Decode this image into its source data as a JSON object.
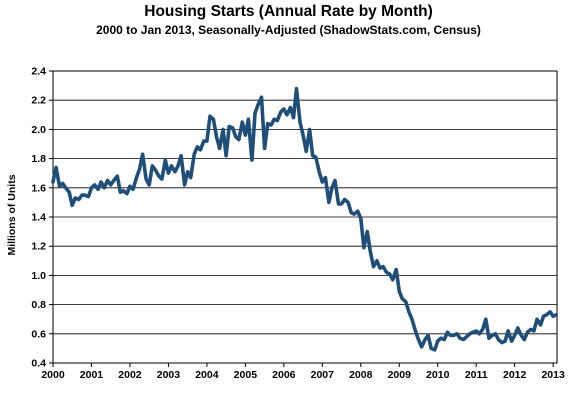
{
  "chart_data": {
    "type": "line",
    "title": "Housing Starts (Annual Rate by Month)",
    "subtitle": "2000 to Jan 2013, Seasonally-Adjusted (ShadowStats.com, Census)",
    "xlabel": "",
    "ylabel": "Millions of Units",
    "xlim": [
      2000,
      2013.08
    ],
    "ylim": [
      0.4,
      2.4
    ],
    "y_ticks": [
      0.4,
      0.6,
      0.8,
      1.0,
      1.2,
      1.4,
      1.6,
      1.8,
      2.0,
      2.2,
      2.4
    ],
    "y_tick_labels": [
      "0.4",
      "0.6",
      "0.8",
      "1.0",
      "1.2",
      "1.4",
      "1.6",
      "1.8",
      "2.0",
      "2.2",
      "2.4"
    ],
    "x_ticks": [
      2000,
      2001,
      2002,
      2003,
      2004,
      2005,
      2006,
      2007,
      2008,
      2009,
      2010,
      2011,
      2012,
      2013
    ],
    "x_tick_labels": [
      "2000",
      "2001",
      "2002",
      "2003",
      "2004",
      "2005",
      "2006",
      "2007",
      "2008",
      "2009",
      "2010",
      "2011",
      "2012",
      "2013"
    ],
    "grid": "horizontal",
    "line_color": "#1f4e79",
    "series": [
      {
        "points": [
          [
            2000.0,
            1.64
          ],
          [
            2000.08,
            1.74
          ],
          [
            2000.17,
            1.61
          ],
          [
            2000.25,
            1.63
          ],
          [
            2000.33,
            1.6
          ],
          [
            2000.42,
            1.57
          ],
          [
            2000.5,
            1.48
          ],
          [
            2000.58,
            1.53
          ],
          [
            2000.67,
            1.52
          ],
          [
            2000.75,
            1.55
          ],
          [
            2000.83,
            1.55
          ],
          [
            2000.92,
            1.54
          ],
          [
            2001.0,
            1.6
          ],
          [
            2001.08,
            1.62
          ],
          [
            2001.17,
            1.59
          ],
          [
            2001.25,
            1.64
          ],
          [
            2001.33,
            1.6
          ],
          [
            2001.42,
            1.65
          ],
          [
            2001.5,
            1.62
          ],
          [
            2001.58,
            1.65
          ],
          [
            2001.67,
            1.68
          ],
          [
            2001.75,
            1.57
          ],
          [
            2001.83,
            1.58
          ],
          [
            2001.92,
            1.56
          ],
          [
            2002.0,
            1.61
          ],
          [
            2002.08,
            1.59
          ],
          [
            2002.17,
            1.67
          ],
          [
            2002.25,
            1.73
          ],
          [
            2002.33,
            1.83
          ],
          [
            2002.42,
            1.66
          ],
          [
            2002.5,
            1.62
          ],
          [
            2002.58,
            1.75
          ],
          [
            2002.67,
            1.72
          ],
          [
            2002.75,
            1.68
          ],
          [
            2002.83,
            1.66
          ],
          [
            2002.92,
            1.79
          ],
          [
            2003.0,
            1.7
          ],
          [
            2003.08,
            1.75
          ],
          [
            2003.17,
            1.71
          ],
          [
            2003.25,
            1.75
          ],
          [
            2003.33,
            1.82
          ],
          [
            2003.42,
            1.62
          ],
          [
            2003.5,
            1.71
          ],
          [
            2003.58,
            1.67
          ],
          [
            2003.67,
            1.83
          ],
          [
            2003.75,
            1.88
          ],
          [
            2003.83,
            1.86
          ],
          [
            2003.92,
            1.92
          ],
          [
            2004.0,
            1.92
          ],
          [
            2004.08,
            2.09
          ],
          [
            2004.17,
            2.07
          ],
          [
            2004.25,
            1.95
          ],
          [
            2004.33,
            1.87
          ],
          [
            2004.42,
            2.0
          ],
          [
            2004.5,
            1.82
          ],
          [
            2004.58,
            2.02
          ],
          [
            2004.67,
            2.01
          ],
          [
            2004.75,
            1.95
          ],
          [
            2004.83,
            1.93
          ],
          [
            2004.92,
            2.05
          ],
          [
            2005.0,
            1.96
          ],
          [
            2005.08,
            2.07
          ],
          [
            2005.17,
            1.79
          ],
          [
            2005.25,
            2.11
          ],
          [
            2005.33,
            2.17
          ],
          [
            2005.42,
            2.22
          ],
          [
            2005.5,
            1.87
          ],
          [
            2005.58,
            2.04
          ],
          [
            2005.67,
            2.03
          ],
          [
            2005.75,
            2.07
          ],
          [
            2005.83,
            2.06
          ],
          [
            2005.92,
            2.12
          ],
          [
            2006.0,
            2.14
          ],
          [
            2006.08,
            2.1
          ],
          [
            2006.17,
            2.15
          ],
          [
            2006.25,
            2.08
          ],
          [
            2006.33,
            2.28
          ],
          [
            2006.42,
            2.05
          ],
          [
            2006.5,
            1.96
          ],
          [
            2006.58,
            1.85
          ],
          [
            2006.67,
            2.0
          ],
          [
            2006.75,
            1.82
          ],
          [
            2006.83,
            1.81
          ],
          [
            2006.92,
            1.71
          ],
          [
            2007.0,
            1.64
          ],
          [
            2007.08,
            1.67
          ],
          [
            2007.17,
            1.5
          ],
          [
            2007.25,
            1.6
          ],
          [
            2007.33,
            1.65
          ],
          [
            2007.42,
            1.49
          ],
          [
            2007.5,
            1.49
          ],
          [
            2007.58,
            1.52
          ],
          [
            2007.67,
            1.5
          ],
          [
            2007.75,
            1.43
          ],
          [
            2007.83,
            1.42
          ],
          [
            2007.92,
            1.44
          ],
          [
            2008.0,
            1.39
          ],
          [
            2008.08,
            1.19
          ],
          [
            2008.17,
            1.3
          ],
          [
            2008.25,
            1.16
          ],
          [
            2008.33,
            1.06
          ],
          [
            2008.42,
            1.1
          ],
          [
            2008.5,
            1.05
          ],
          [
            2008.58,
            1.06
          ],
          [
            2008.67,
            1.02
          ],
          [
            2008.75,
            1.01
          ],
          [
            2008.83,
            0.97
          ],
          [
            2008.92,
            1.04
          ],
          [
            2009.0,
            0.89
          ],
          [
            2009.08,
            0.84
          ],
          [
            2009.17,
            0.82
          ],
          [
            2009.25,
            0.75
          ],
          [
            2009.33,
            0.7
          ],
          [
            2009.42,
            0.62
          ],
          [
            2009.5,
            0.56
          ],
          [
            2009.58,
            0.51
          ],
          [
            2009.67,
            0.56
          ],
          [
            2009.75,
            0.59
          ],
          [
            2009.83,
            0.5
          ],
          [
            2009.92,
            0.49
          ],
          [
            2010.0,
            0.55
          ],
          [
            2010.08,
            0.57
          ],
          [
            2010.17,
            0.56
          ],
          [
            2010.25,
            0.61
          ],
          [
            2010.33,
            0.59
          ],
          [
            2010.42,
            0.59
          ],
          [
            2010.5,
            0.6
          ],
          [
            2010.58,
            0.57
          ],
          [
            2010.67,
            0.56
          ],
          [
            2010.75,
            0.58
          ],
          [
            2010.83,
            0.6
          ],
          [
            2010.92,
            0.61
          ],
          [
            2011.0,
            0.62
          ],
          [
            2011.08,
            0.6
          ],
          [
            2011.17,
            0.63
          ],
          [
            2011.25,
            0.7
          ],
          [
            2011.33,
            0.57
          ],
          [
            2011.42,
            0.59
          ],
          [
            2011.5,
            0.6
          ],
          [
            2011.58,
            0.56
          ],
          [
            2011.67,
            0.54
          ],
          [
            2011.75,
            0.55
          ],
          [
            2011.83,
            0.62
          ],
          [
            2011.92,
            0.55
          ],
          [
            2012.0,
            0.59
          ],
          [
            2012.08,
            0.64
          ],
          [
            2012.17,
            0.59
          ],
          [
            2012.25,
            0.56
          ],
          [
            2012.33,
            0.61
          ],
          [
            2012.42,
            0.63
          ],
          [
            2012.5,
            0.62
          ],
          [
            2012.58,
            0.7
          ],
          [
            2012.67,
            0.66
          ],
          [
            2012.75,
            0.72
          ],
          [
            2012.83,
            0.73
          ],
          [
            2012.92,
            0.75
          ],
          [
            2013.0,
            0.72
          ],
          [
            2013.08,
            0.73
          ]
        ]
      }
    ]
  }
}
